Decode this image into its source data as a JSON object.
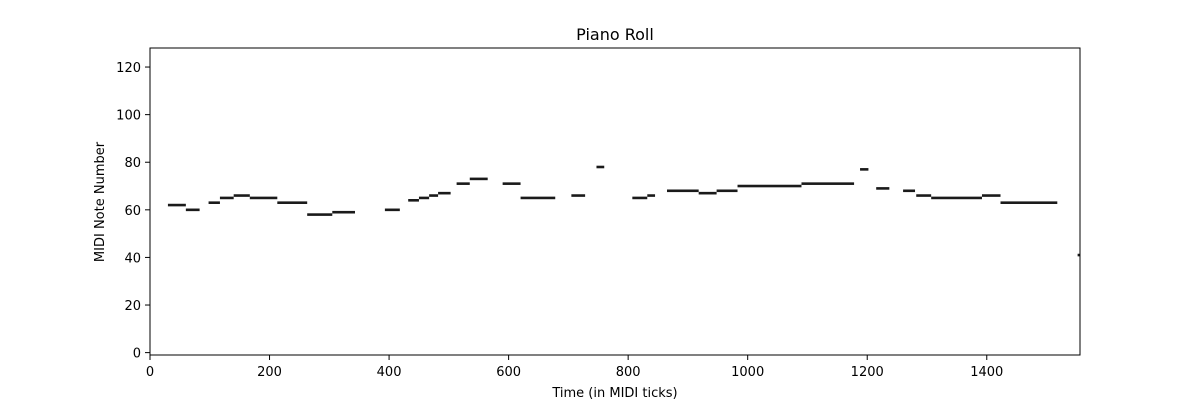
{
  "chart_data": {
    "type": "piano-roll",
    "title": "Piano Roll",
    "xlabel": "Time (in MIDI ticks)",
    "ylabel": "MIDI Note Number",
    "xlim": [
      0,
      1556
    ],
    "ylim": [
      -1,
      128
    ],
    "xticks": [
      0,
      200,
      400,
      600,
      800,
      1000,
      1200,
      1400
    ],
    "yticks": [
      0,
      20,
      40,
      60,
      80,
      100,
      120
    ],
    "grid": false,
    "legend": "none",
    "note_color": "#1a1a1a",
    "notes": [
      {
        "start": 30,
        "end": 60,
        "pitch": 62
      },
      {
        "start": 60,
        "end": 83,
        "pitch": 60
      },
      {
        "start": 98,
        "end": 117,
        "pitch": 63
      },
      {
        "start": 117,
        "end": 140,
        "pitch": 65
      },
      {
        "start": 140,
        "end": 167,
        "pitch": 66
      },
      {
        "start": 167,
        "end": 213,
        "pitch": 65
      },
      {
        "start": 213,
        "end": 263,
        "pitch": 63
      },
      {
        "start": 263,
        "end": 305,
        "pitch": 58
      },
      {
        "start": 305,
        "end": 343,
        "pitch": 59
      },
      {
        "start": 393,
        "end": 418,
        "pitch": 60
      },
      {
        "start": 432,
        "end": 450,
        "pitch": 64
      },
      {
        "start": 450,
        "end": 467,
        "pitch": 65
      },
      {
        "start": 467,
        "end": 482,
        "pitch": 66
      },
      {
        "start": 482,
        "end": 503,
        "pitch": 67
      },
      {
        "start": 513,
        "end": 535,
        "pitch": 71
      },
      {
        "start": 535,
        "end": 565,
        "pitch": 73
      },
      {
        "start": 590,
        "end": 620,
        "pitch": 71
      },
      {
        "start": 620,
        "end": 678,
        "pitch": 65
      },
      {
        "start": 705,
        "end": 728,
        "pitch": 66
      },
      {
        "start": 747,
        "end": 760,
        "pitch": 78
      },
      {
        "start": 807,
        "end": 832,
        "pitch": 65
      },
      {
        "start": 832,
        "end": 845,
        "pitch": 66
      },
      {
        "start": 865,
        "end": 918,
        "pitch": 68
      },
      {
        "start": 918,
        "end": 948,
        "pitch": 67
      },
      {
        "start": 948,
        "end": 983,
        "pitch": 68
      },
      {
        "start": 983,
        "end": 1090,
        "pitch": 70
      },
      {
        "start": 1090,
        "end": 1178,
        "pitch": 71
      },
      {
        "start": 1188,
        "end": 1202,
        "pitch": 77
      },
      {
        "start": 1215,
        "end": 1237,
        "pitch": 69
      },
      {
        "start": 1260,
        "end": 1280,
        "pitch": 68
      },
      {
        "start": 1282,
        "end": 1307,
        "pitch": 66
      },
      {
        "start": 1307,
        "end": 1392,
        "pitch": 65
      },
      {
        "start": 1392,
        "end": 1423,
        "pitch": 66
      },
      {
        "start": 1423,
        "end": 1518,
        "pitch": 63
      },
      {
        "start": 1552,
        "end": 1556,
        "pitch": 41
      }
    ]
  }
}
